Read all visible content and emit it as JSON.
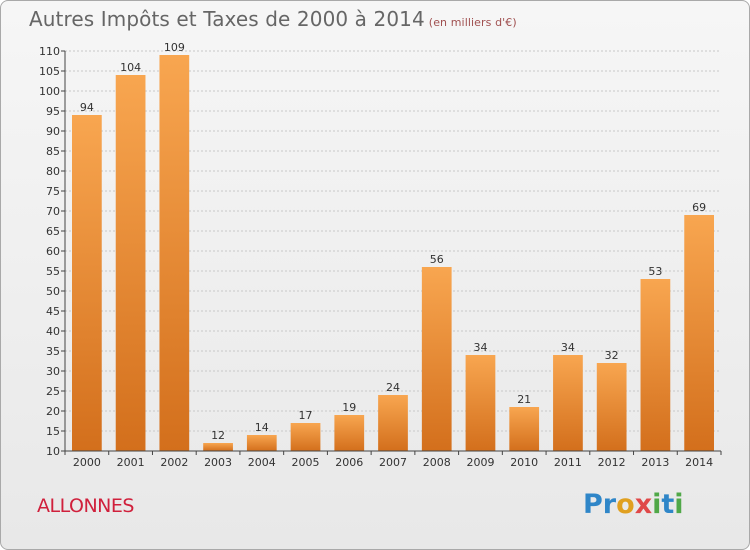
{
  "header": {
    "title": "Autres Impôts et Taxes de 2000 à 2014",
    "subtitle": "(en milliers d'€)"
  },
  "commune": "ALLONNES",
  "brand": {
    "letters": [
      {
        "ch": "P",
        "color": "#2f86c8"
      },
      {
        "ch": "r",
        "color": "#2f86c8"
      },
      {
        "ch": "o",
        "color": "#e0a020"
      },
      {
        "ch": "x",
        "color": "#e04848"
      },
      {
        "ch": "i",
        "color": "#50a848"
      },
      {
        "ch": "t",
        "color": "#2f86c8"
      },
      {
        "ch": "i",
        "color": "#50a848"
      }
    ]
  },
  "chart_data": {
    "type": "bar",
    "categories": [
      "2000",
      "2001",
      "2002",
      "2003",
      "2004",
      "2005",
      "2006",
      "2007",
      "2008",
      "2009",
      "2010",
      "2011",
      "2012",
      "2013",
      "2014"
    ],
    "values": [
      94,
      104,
      109,
      12,
      14,
      17,
      19,
      24,
      56,
      34,
      21,
      34,
      32,
      53,
      69
    ],
    "ylim": [
      10,
      110
    ],
    "yticks": [
      10,
      15,
      20,
      25,
      30,
      35,
      40,
      45,
      50,
      55,
      60,
      65,
      70,
      75,
      80,
      85,
      90,
      95,
      100,
      105,
      110
    ],
    "grid": true,
    "colors": {
      "bar_top": "#f8a650",
      "bar_bottom": "#d36f1c"
    }
  }
}
